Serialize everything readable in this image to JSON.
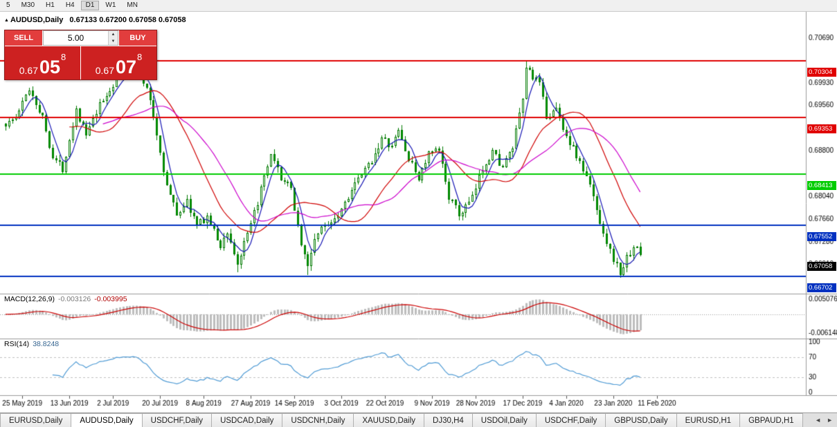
{
  "toolbar": {
    "timeframes": [
      "5",
      "M30",
      "H1",
      "H4",
      "D1",
      "W1",
      "MN"
    ],
    "active_timeframe": "D1"
  },
  "chart_header": {
    "marker": "▲",
    "symbol": "AUDUSD,Daily",
    "ohlc": "0.67133 0.67200 0.67058 0.67058"
  },
  "trade_panel": {
    "sell_label": "SELL",
    "buy_label": "BUY",
    "volume": "5.00",
    "spin_up": "▲",
    "spin_down": "▼",
    "sell_price": {
      "prefix": "0.67",
      "big": "05",
      "sup": "8"
    },
    "buy_price": {
      "prefix": "0.67",
      "big": "07",
      "sup": "8"
    }
  },
  "price_scale": {
    "labels": [
      {
        "text": "0.70690",
        "value": 0.7069
      },
      {
        "text": "0.69930",
        "value": 0.6993
      },
      {
        "text": "0.69560",
        "value": 0.6956
      },
      {
        "text": "0.69180",
        "value": 0.6918
      },
      {
        "text": "0.68800",
        "value": 0.688
      },
      {
        "text": "0.68040",
        "value": 0.6804
      },
      {
        "text": "0.67660",
        "value": 0.6766
      },
      {
        "text": "0.67280",
        "value": 0.6728
      },
      {
        "text": "0.66910",
        "value": 0.6691
      },
      {
        "text": "0.66530",
        "value": 0.6653
      }
    ],
    "tags": [
      {
        "text": "0.70304",
        "value": 0.70304,
        "color": "#e00000"
      },
      {
        "text": "0.69353",
        "value": 0.69353,
        "color": "#e00000"
      },
      {
        "text": "0.68413",
        "value": 0.68413,
        "color": "#00cc00"
      },
      {
        "text": "0.67552",
        "value": 0.67552,
        "color": "#0030c0"
      },
      {
        "text": "0.67058",
        "value": 0.67058,
        "color": "#000000"
      },
      {
        "text": "0.66702",
        "value": 0.66702,
        "color": "#0030c0"
      }
    ]
  },
  "macd_panel": {
    "label": "MACD(12,26,9)",
    "value_main": "-0.003126",
    "value_signal": "-0.003995",
    "scale_top": "0.005076",
    "scale_bottom": "-0.006148"
  },
  "rsi_panel": {
    "label": "RSI(14)",
    "value": "38.8248",
    "scale": [
      "100",
      "70",
      "30",
      "0"
    ],
    "scale_values": [
      100,
      70,
      30,
      0
    ],
    "level_lines": [
      70,
      30
    ]
  },
  "time_scale": {
    "dates": [
      "25 May 2019",
      "13 Jun 2019",
      "2 Jul 2019",
      "20 Jul 2019",
      "8 Aug 2019",
      "27 Aug 2019",
      "14 Sep 2019",
      "3 Oct 2019",
      "22 Oct 2019",
      "9 Nov 2019",
      "28 Nov 2019",
      "17 Dec 2019",
      "4 Jan 2020",
      "23 Jan 2020",
      "11 Feb 2020"
    ],
    "indices": [
      5,
      19,
      32,
      46,
      59,
      73,
      86,
      100,
      113,
      127,
      140,
      154,
      167,
      181,
      194
    ]
  },
  "tabs": {
    "items": [
      {
        "label": "EURUSD,Daily",
        "active": false
      },
      {
        "label": "AUDUSD,Daily",
        "active": true
      },
      {
        "label": "USDCHF,Daily",
        "active": false
      },
      {
        "label": "USDCAD,Daily",
        "active": false
      },
      {
        "label": "USDCNH,Daily",
        "active": false
      },
      {
        "label": "XAUUSD,Daily",
        "active": false
      },
      {
        "label": "DJ30,H4",
        "active": false
      },
      {
        "label": "USDOil,Daily",
        "active": false
      },
      {
        "label": "USDCHF,Daily",
        "active": false
      },
      {
        "label": "GBPUSD,Daily",
        "active": false
      },
      {
        "label": "EURUSD,H1",
        "active": false
      },
      {
        "label": "GBPAUD,H1",
        "active": false
      }
    ],
    "scroll_left": "◄",
    "scroll_right": "►"
  },
  "palette": {
    "bull_candle": "#ffffff",
    "bear_candle": "#00a000",
    "candle_border": "#007a00",
    "ma_fast": "#1414b4",
    "ma_mid": "#d00000",
    "ma_slow": "#cc00cc",
    "macd_histogram": "#bdbdbd",
    "macd_signal": "#cc0000",
    "rsi_line": "#4f9bd5",
    "level_red": "#e00000",
    "level_green": "#00cc00",
    "level_blue": "#0030c0",
    "separator": "#9a9a9a",
    "axis_text": "#000000"
  },
  "chart_data": {
    "type": "candlestick",
    "symbol": "AUDUSD",
    "timeframe": "Daily",
    "candle_count": 190,
    "visible_price_range": {
      "top": 0.70801,
      "bottom": 0.66447
    },
    "price_path": [
      [
        0,
        0.6925
      ],
      [
        3,
        0.6935
      ],
      [
        7,
        0.6985
      ],
      [
        11,
        0.6935
      ],
      [
        14,
        0.687
      ],
      [
        17,
        0.685
      ],
      [
        21,
        0.695
      ],
      [
        24,
        0.6905
      ],
      [
        28,
        0.6955
      ],
      [
        33,
        0.7
      ],
      [
        38,
        0.702
      ],
      [
        41,
        0.6995
      ],
      [
        43,
        0.6965
      ],
      [
        48,
        0.682
      ],
      [
        51,
        0.6775
      ],
      [
        54,
        0.6795
      ],
      [
        57,
        0.6755
      ],
      [
        60,
        0.677
      ],
      [
        64,
        0.672
      ],
      [
        66,
        0.6745
      ],
      [
        69,
        0.669
      ],
      [
        73,
        0.6755
      ],
      [
        76,
        0.6815
      ],
      [
        79,
        0.687
      ],
      [
        82,
        0.6835
      ],
      [
        85,
        0.6815
      ],
      [
        88,
        0.6725
      ],
      [
        90,
        0.6685
      ],
      [
        92,
        0.6735
      ],
      [
        95,
        0.6755
      ],
      [
        99,
        0.6775
      ],
      [
        103,
        0.6815
      ],
      [
        108,
        0.6855
      ],
      [
        112,
        0.69
      ],
      [
        115,
        0.6885
      ],
      [
        117,
        0.6915
      ],
      [
        120,
        0.6865
      ],
      [
        123,
        0.6835
      ],
      [
        126,
        0.6875
      ],
      [
        129,
        0.688
      ],
      [
        132,
        0.6805
      ],
      [
        135,
        0.6772
      ],
      [
        139,
        0.68
      ],
      [
        142,
        0.6852
      ],
      [
        145,
        0.688
      ],
      [
        148,
        0.6852
      ],
      [
        151,
        0.6885
      ],
      [
        154,
        0.6965
      ],
      [
        155,
        0.702
      ],
      [
        157,
        0.7005
      ],
      [
        159,
        0.699
      ],
      [
        161,
        0.6938
      ],
      [
        164,
        0.695
      ],
      [
        167,
        0.6905
      ],
      [
        170,
        0.6872
      ],
      [
        174,
        0.6822
      ],
      [
        177,
        0.6762
      ],
      [
        180,
        0.6712
      ],
      [
        183,
        0.6675
      ],
      [
        185,
        0.67
      ],
      [
        187,
        0.6722
      ],
      [
        189,
        0.6706
      ]
    ],
    "pins": [
      {
        "index": 155,
        "high": 0.7031
      },
      {
        "index": 69,
        "low": 0.6677
      },
      {
        "index": 90,
        "low": 0.6672
      },
      {
        "index": 183,
        "low": 0.6668
      },
      {
        "index": 189,
        "close": 0.67058
      }
    ],
    "moving_averages": [
      {
        "period": 5,
        "color_key": "ma_fast"
      },
      {
        "period": 20,
        "color_key": "ma_mid"
      },
      {
        "period": 30,
        "color_key": "ma_slow"
      }
    ],
    "horizontal_lines": [
      {
        "value": 0.70304,
        "color_key": "level_red"
      },
      {
        "value": 0.69353,
        "color_key": "level_red"
      },
      {
        "value": 0.68413,
        "color_key": "level_green"
      },
      {
        "value": 0.67552,
        "color_key": "level_blue"
      },
      {
        "value": 0.66702,
        "color_key": "level_blue"
      }
    ],
    "indicators": {
      "macd": {
        "fast": 12,
        "slow": 26,
        "signal": 9,
        "range": [
          -0.006148,
          0.005076
        ]
      },
      "rsi": {
        "period": 14,
        "range": [
          0,
          100
        ]
      }
    }
  }
}
